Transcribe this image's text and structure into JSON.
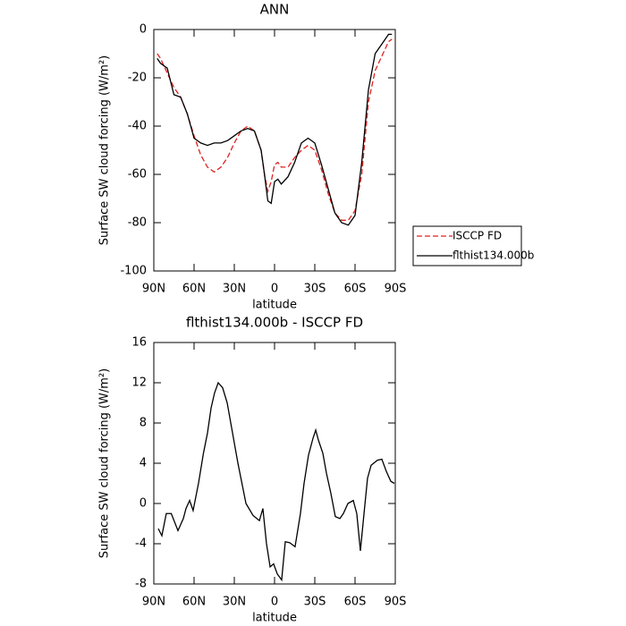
{
  "chart_data": [
    {
      "type": "line",
      "title": "ANN",
      "xlabel": "latitude",
      "ylabel": "Surface SW cloud forcing (W/m²)",
      "x": [
        87.5,
        85,
        80,
        75,
        70,
        65,
        60,
        55,
        50,
        45,
        40,
        35,
        30,
        25,
        20,
        15,
        10,
        7.5,
        5,
        2.5,
        0,
        -2.5,
        -5,
        -10,
        -15,
        -20,
        -25,
        -30,
        -35,
        -40,
        -45,
        -50,
        -55,
        -60,
        -65,
        -70,
        -75,
        -80,
        -85,
        -87.5
      ],
      "series": [
        {
          "name": "ISCCP FD",
          "color": "#e02020",
          "dashed": true,
          "values": [
            -10,
            -12,
            -18,
            -24,
            -28,
            -35,
            -44,
            -52,
            -57,
            -59,
            -57,
            -53,
            -47,
            -42,
            -40,
            -42,
            -50,
            -60,
            -67,
            -63,
            -56,
            -55,
            -57,
            -57,
            -53,
            -50,
            -48,
            -50,
            -58,
            -68,
            -76,
            -79,
            -79,
            -75,
            -60,
            -30,
            -17,
            -11,
            -5,
            -4
          ]
        },
        {
          "name": "flthist134.000b",
          "color": "#000000",
          "dashed": false,
          "values": [
            -12,
            -14,
            -16,
            -27,
            -28,
            -35,
            -45,
            -47,
            -48,
            -47,
            -47,
            -46,
            -44,
            -42,
            -41,
            -42,
            -50,
            -60,
            -71,
            -72,
            -63,
            -62,
            -64,
            -61,
            -55,
            -47,
            -45,
            -47,
            -56,
            -66,
            -76,
            -80,
            -81,
            -77,
            -55,
            -25,
            -10,
            -6,
            -2,
            -2
          ]
        }
      ],
      "xlim": [
        90,
        -90
      ],
      "xticks": [
        {
          "value": 90,
          "label": "90N"
        },
        {
          "value": 60,
          "label": "60N"
        },
        {
          "value": 30,
          "label": "30N"
        },
        0,
        {
          "value": -30,
          "label": "30S"
        },
        {
          "value": -60,
          "label": "60S"
        },
        {
          "value": -90,
          "label": "90S"
        }
      ],
      "ylim": [
        -100,
        0
      ],
      "yticks": [
        -100,
        -80,
        -60,
        -40,
        -20,
        0
      ],
      "legend": "outside-right-bottom"
    },
    {
      "type": "line",
      "title": "flthist134.000b - ISCCP FD",
      "xlabel": "latitude",
      "ylabel": "Surface SW cloud forcing (W/m²)",
      "x": [
        86.7,
        84,
        80.7,
        77,
        72,
        68,
        66,
        63.3,
        60.7,
        56.7,
        53,
        50,
        47.3,
        44.7,
        42,
        38.7,
        35.3,
        31.3,
        27.3,
        21.3,
        16,
        11.3,
        8.7,
        6,
        3.3,
        0.7,
        -2,
        -5.3,
        -8,
        -11.3,
        -15.3,
        -19.3,
        -22,
        -25.3,
        -28.7,
        -30.7,
        -32.7,
        -36,
        -38.7,
        -42,
        -45.3,
        -48.7,
        -51.3,
        -54.7,
        -58.7,
        -61.3,
        -64,
        -66.7,
        -69.3,
        -72,
        -76.7,
        -80,
        -83.3,
        -86.7,
        -89.3
      ],
      "values": [
        -2.5,
        -3.2,
        -1,
        -1,
        -2.7,
        -1.5,
        -0.5,
        0.3,
        -0.7,
        2,
        5,
        7,
        9.5,
        11,
        12,
        11.5,
        10,
        7,
        4,
        0,
        -1.2,
        -1.7,
        -0.5,
        -4,
        -6.3,
        -6,
        -7,
        -7.6,
        -3.8,
        -3.9,
        -4.3,
        -1,
        2,
        4.8,
        6.5,
        7.3,
        6.3,
        5,
        3,
        1,
        -1.3,
        -1.5,
        -1,
        0,
        0.3,
        -1,
        -4.7,
        -1,
        2.5,
        3.8,
        4.3,
        4.4,
        3.2,
        2.2,
        2
      ],
      "color": "#000000",
      "xlim": [
        90,
        -90
      ],
      "xticks": [
        {
          "value": 90,
          "label": "90N"
        },
        {
          "value": 60,
          "label": "60N"
        },
        {
          "value": 30,
          "label": "30N"
        },
        0,
        {
          "value": -30,
          "label": "30S"
        },
        {
          "value": -60,
          "label": "60S"
        },
        {
          "value": -90,
          "label": "90S"
        }
      ],
      "ylim": [
        -8,
        16
      ],
      "yticks": [
        -8,
        -4,
        0,
        4,
        8,
        12,
        16
      ]
    }
  ]
}
